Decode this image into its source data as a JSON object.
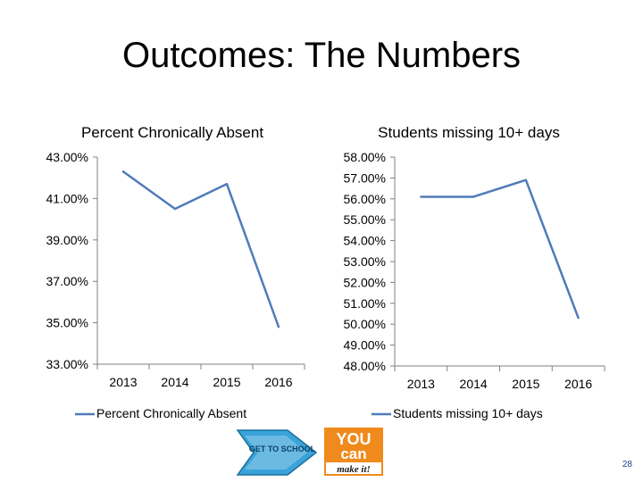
{
  "slide": {
    "title": "Outcomes: The Numbers",
    "page_number": "28"
  },
  "logos": {
    "left_text": "GET TO SCHOOL",
    "right_line1": "YOU",
    "right_line2": "can",
    "right_line3": "make it!"
  },
  "colors": {
    "series": "#4f7bb8",
    "axis": "#808080"
  },
  "chart_data": [
    {
      "type": "line",
      "title": "Percent Chronically Absent",
      "categories": [
        "2013",
        "2014",
        "2015",
        "2016"
      ],
      "y_tick_labels": [
        "43.00%",
        "41.00%",
        "39.00%",
        "37.00%",
        "35.00%",
        "33.00%"
      ],
      "ylim": [
        33,
        43
      ],
      "series": [
        {
          "name": "Percent Chronically Absent",
          "values": [
            42.3,
            40.5,
            41.7,
            34.8
          ]
        }
      ],
      "legend": "bottom",
      "grid": false
    },
    {
      "type": "line",
      "title": "Students missing 10+ days",
      "categories": [
        "2013",
        "2014",
        "2015",
        "2016"
      ],
      "y_tick_labels": [
        "58.00%",
        "57.00%",
        "56.00%",
        "55.00%",
        "54.00%",
        "53.00%",
        "52.00%",
        "51.00%",
        "50.00%",
        "49.00%",
        "48.00%"
      ],
      "ylim": [
        48,
        58
      ],
      "series": [
        {
          "name": "Students missing 10+ days",
          "values": [
            56.1,
            56.1,
            56.9,
            50.3
          ]
        }
      ],
      "legend": "bottom",
      "grid": false
    }
  ]
}
